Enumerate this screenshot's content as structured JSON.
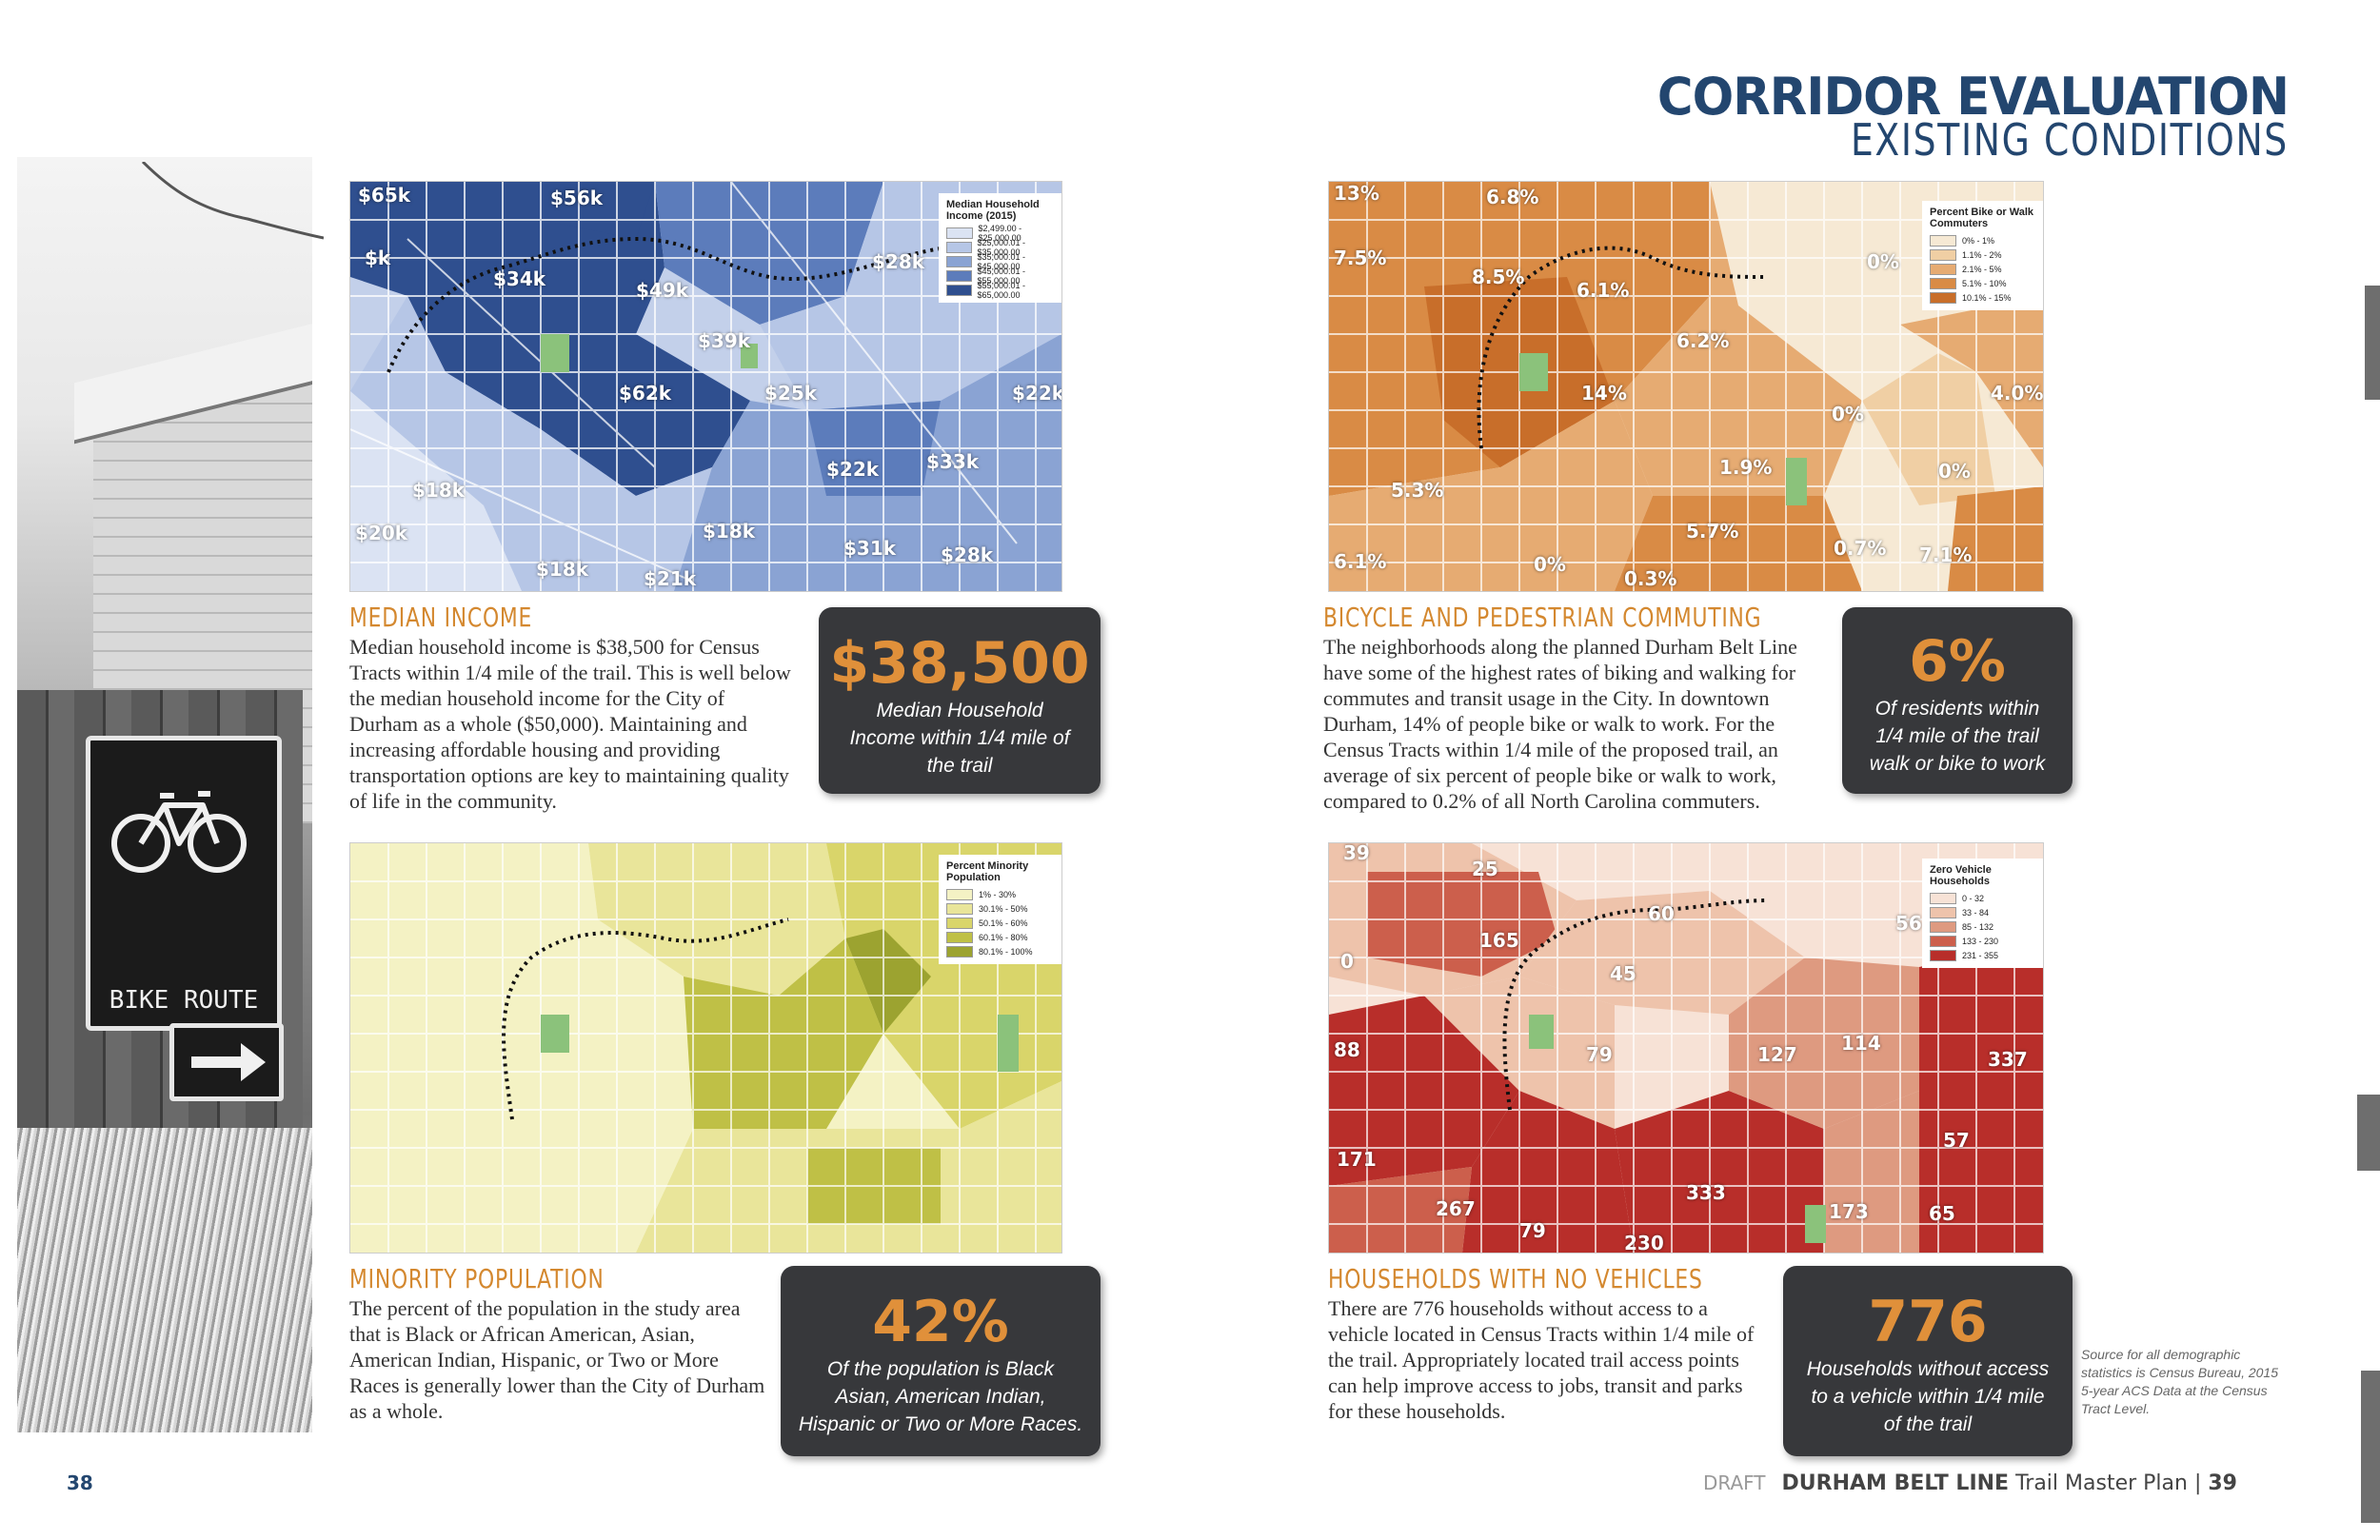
{
  "header": {
    "title": "CORRIDOR EVALUATION",
    "subtitle": "EXISTING CONDITIONS"
  },
  "photo": {
    "sign_label": "BIKE ROUTE"
  },
  "sections": {
    "median_income": {
      "title": "MEDIAN INCOME",
      "body": "Median household income is $38,500 for Census Tracts within 1/4 mile of the trail. This is well below the median household income for the City of Durham as a whole ($50,000). Maintaining and increasing affordable housing and providing transportation options are key to maintaining quality of life in the community.",
      "stat": "$38,500",
      "stat_caption": "Median Household Income within 1/4 mile of the trail"
    },
    "bike_ped": {
      "title": "BICYCLE AND PEDESTRIAN COMMUTING",
      "body": "The neighborhoods along the planned Durham Belt Line have some of the highest rates of biking and walking for commutes and transit usage in the City. In downtown Durham, 14% of people bike or walk to work. For the Census Tracts within 1/4 mile of the proposed trail, an average of six percent of people bike or walk to work, compared to 0.2% of all North Carolina commuters.",
      "stat": "6%",
      "stat_caption": "Of residents within 1/4 mile of the trail walk or bike to work"
    },
    "minority": {
      "title": "MINORITY POPULATION",
      "body": "The percent of the population in the study area that is Black or African American, Asian, American Indian, Hispanic, or Two or More Races is generally lower than the City of Durham as a whole.",
      "stat": "42%",
      "stat_caption": "Of the population is Black Asian, American Indian, Hispanic or Two or More Races."
    },
    "no_vehicles": {
      "title": "HOUSEHOLDS WITH NO VEHICLES",
      "body": "There are 776 households without access to a vehicle located in Census Tracts within 1/4 mile of the trail. Appropriately located trail access points can help improve access to jobs, transit and parks for these households.",
      "stat": "776",
      "stat_caption": "Households without access to a vehicle within 1/4 mile of the trail"
    }
  },
  "maps": {
    "income": {
      "legend_title": "Median Household Income (2015)",
      "legend_items": [
        "$2,499.00 - $25,000.00",
        "$25,000.01 - $35,000.00",
        "$35,000.01 - $45,000.00",
        "$45,000.01 - $55,000.00",
        "$55,000.01 - $65,000.00"
      ],
      "colors": [
        "#dbe3f3",
        "#b6c6e6",
        "#8aa3d3",
        "#5c7cbb",
        "#2f4f8f"
      ],
      "labels": [
        "$65k",
        "$56k",
        "$k",
        "$34k",
        "$49k",
        "$28k",
        "$39k",
        "$62k",
        "$25k",
        "$22k",
        "$22k",
        "$33k",
        "$18k",
        "$20k",
        "$18k",
        "$18k",
        "$31k",
        "$28k",
        "$21k"
      ]
    },
    "bike": {
      "legend_title": "Percent Bike or Walk Commuters",
      "legend_items": [
        "0% - 1%",
        "1.1% - 2%",
        "2.1% - 5%",
        "5.1% - 10%",
        "10.1% - 15%"
      ],
      "colors": [
        "#f6e9d4",
        "#f0cfa4",
        "#e6ab72",
        "#d98b45",
        "#c86e2a"
      ],
      "labels": [
        "13%",
        "6.8%",
        "7.5%",
        "8.5%",
        "6.1%",
        "0%",
        "6.2%",
        "14%",
        "4.0%",
        "0%",
        "1.9%",
        "0%",
        "5.3%",
        "5.7%",
        "0.7%",
        "6.1%",
        "0%",
        "0.3%",
        "7.1%"
      ]
    },
    "minority": {
      "legend_title": "Percent Minority Population",
      "legend_items": [
        "1% - 30%",
        "30.1% - 50%",
        "50.1% - 60%",
        "60.1% - 80%",
        "80.1% - 100%"
      ],
      "colors": [
        "#f4f2c4",
        "#e9e59a",
        "#d9d56a",
        "#bfc046",
        "#9ca330"
      ]
    },
    "vehicles": {
      "legend_title": "Zero Vehicle Households",
      "legend_items": [
        "0 - 32",
        "33 - 84",
        "85 - 132",
        "133 - 230",
        "231 - 355"
      ],
      "colors": [
        "#f7e2d6",
        "#eec3ab",
        "#de9a80",
        "#cc5f4c",
        "#b82e2a"
      ],
      "labels": [
        "39",
        "25",
        "60",
        "56",
        "165",
        "0",
        "45",
        "88",
        "79",
        "127",
        "114",
        "337",
        "171",
        "57",
        "267",
        "333",
        "173",
        "65",
        "79",
        "230"
      ]
    }
  },
  "source_note": "Source for all demographic statistics is Census Bureau, 2015 5-year ACS Data at the Census Tract Level.",
  "footer": {
    "draft": "DRAFT",
    "name": "DURHAM BELT LINE",
    "rest": "Trail Master Plan |",
    "page": "39"
  },
  "left_page_number": "38"
}
